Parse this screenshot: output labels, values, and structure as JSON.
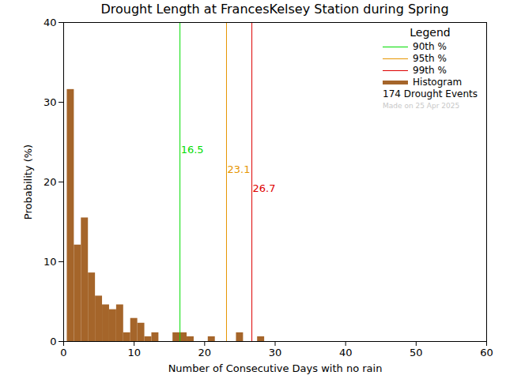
{
  "chart_data": {
    "type": "histogram",
    "title": "Drought Length at FrancesKelsey Station during Spring",
    "x_label": "Number of Consecutive Days with no rain",
    "y_label": "Probability (%)",
    "name": "Histogram",
    "color": "#a5652a",
    "bins": [
      0.5,
      1.5,
      2.5,
      3.5,
      4.5,
      5.5,
      6.5,
      7.5,
      8.5,
      9.5,
      10.5,
      11.5,
      12.5,
      13.5,
      14.5,
      15.5,
      16.5,
      17.5,
      18.5,
      19.5,
      20.5,
      21.5,
      22.5,
      23.5,
      24.5,
      25.5,
      26.5,
      27.5,
      28.5
    ],
    "values": [
      31.6,
      12.1,
      15.5,
      8.6,
      5.7,
      4.6,
      4.0,
      4.6,
      1.1,
      2.9,
      2.3,
      0.6,
      1.1,
      0,
      0,
      1.1,
      1.1,
      0.6,
      0,
      0,
      0.6,
      0,
      0,
      0,
      1.1,
      0,
      0,
      0.6
    ],
    "lines": [
      {
        "name": "90th %",
        "value": 16.5,
        "color": "#00dd00"
      },
      {
        "name": "95th %",
        "value": 23.1,
        "color": "#e69500"
      },
      {
        "name": "99th %",
        "value": 26.7,
        "color": "#dd0000"
      }
    ],
    "xlim": [
      0,
      60
    ],
    "xticks": [
      0,
      10,
      20,
      30,
      40,
      50,
      60
    ],
    "ylim": [
      0,
      40
    ],
    "yticks": [
      0,
      10,
      20,
      30,
      40
    ],
    "legend": "top-right",
    "legend_title": "Legend",
    "annotations": [
      "174 Drought Events",
      "Made on 25 Apr 2025"
    ]
  }
}
